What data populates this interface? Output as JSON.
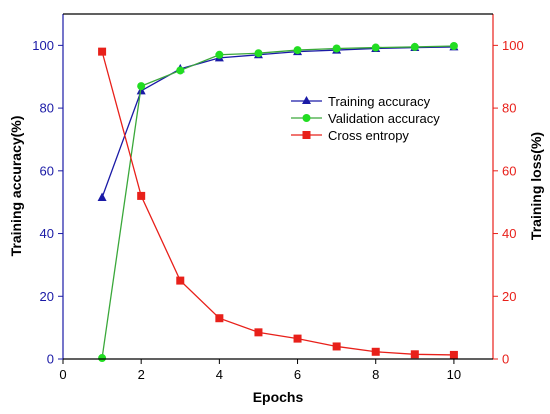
{
  "chart_data": {
    "type": "line",
    "xlabel": "Epochs",
    "ylabel_left": "Training accuracy(%)",
    "ylabel_right": "Training loss(%)",
    "xlim": [
      0,
      11
    ],
    "ylim_left": [
      0,
      110
    ],
    "ylim_right": [
      0,
      110
    ],
    "x_ticks": [
      0,
      2,
      4,
      6,
      8,
      10
    ],
    "y_ticks_left": [
      0,
      20,
      40,
      60,
      80,
      100
    ],
    "y_ticks_right": [
      0,
      20,
      40,
      60,
      80,
      100
    ],
    "grid": false,
    "legend_position": "upper-right",
    "colors": {
      "left_axis": "#1a1aa6",
      "right_axis": "#e8201a",
      "bottom_axis": "#000000"
    },
    "series": [
      {
        "name": "Training accuracy",
        "axis": "left",
        "color": "#1a1aa6",
        "marker": "triangle",
        "marker_color": "#1a1aa6",
        "x": [
          1,
          2,
          3,
          4,
          5,
          6,
          7,
          8,
          9,
          10
        ],
        "y": [
          51.5,
          85.5,
          92.5,
          96.0,
          97.0,
          98.0,
          98.5,
          99.0,
          99.3,
          99.5
        ]
      },
      {
        "name": "Validation accuracy",
        "axis": "left",
        "color": "#3aa83a",
        "marker": "circle",
        "marker_color": "#22dd22",
        "x": [
          1,
          2,
          3,
          4,
          5,
          6,
          7,
          8,
          9,
          10
        ],
        "y": [
          0.3,
          87.0,
          92.0,
          97.0,
          97.5,
          98.5,
          99.0,
          99.3,
          99.5,
          99.8
        ]
      },
      {
        "name": "Cross entropy",
        "axis": "right",
        "color": "#e8201a",
        "marker": "square",
        "marker_color": "#e8201a",
        "x": [
          1,
          2,
          3,
          4,
          5,
          6,
          7,
          8,
          9,
          10
        ],
        "y": [
          98.0,
          52.0,
          25.0,
          13.0,
          8.5,
          6.5,
          4.0,
          2.3,
          1.5,
          1.3
        ]
      }
    ]
  }
}
